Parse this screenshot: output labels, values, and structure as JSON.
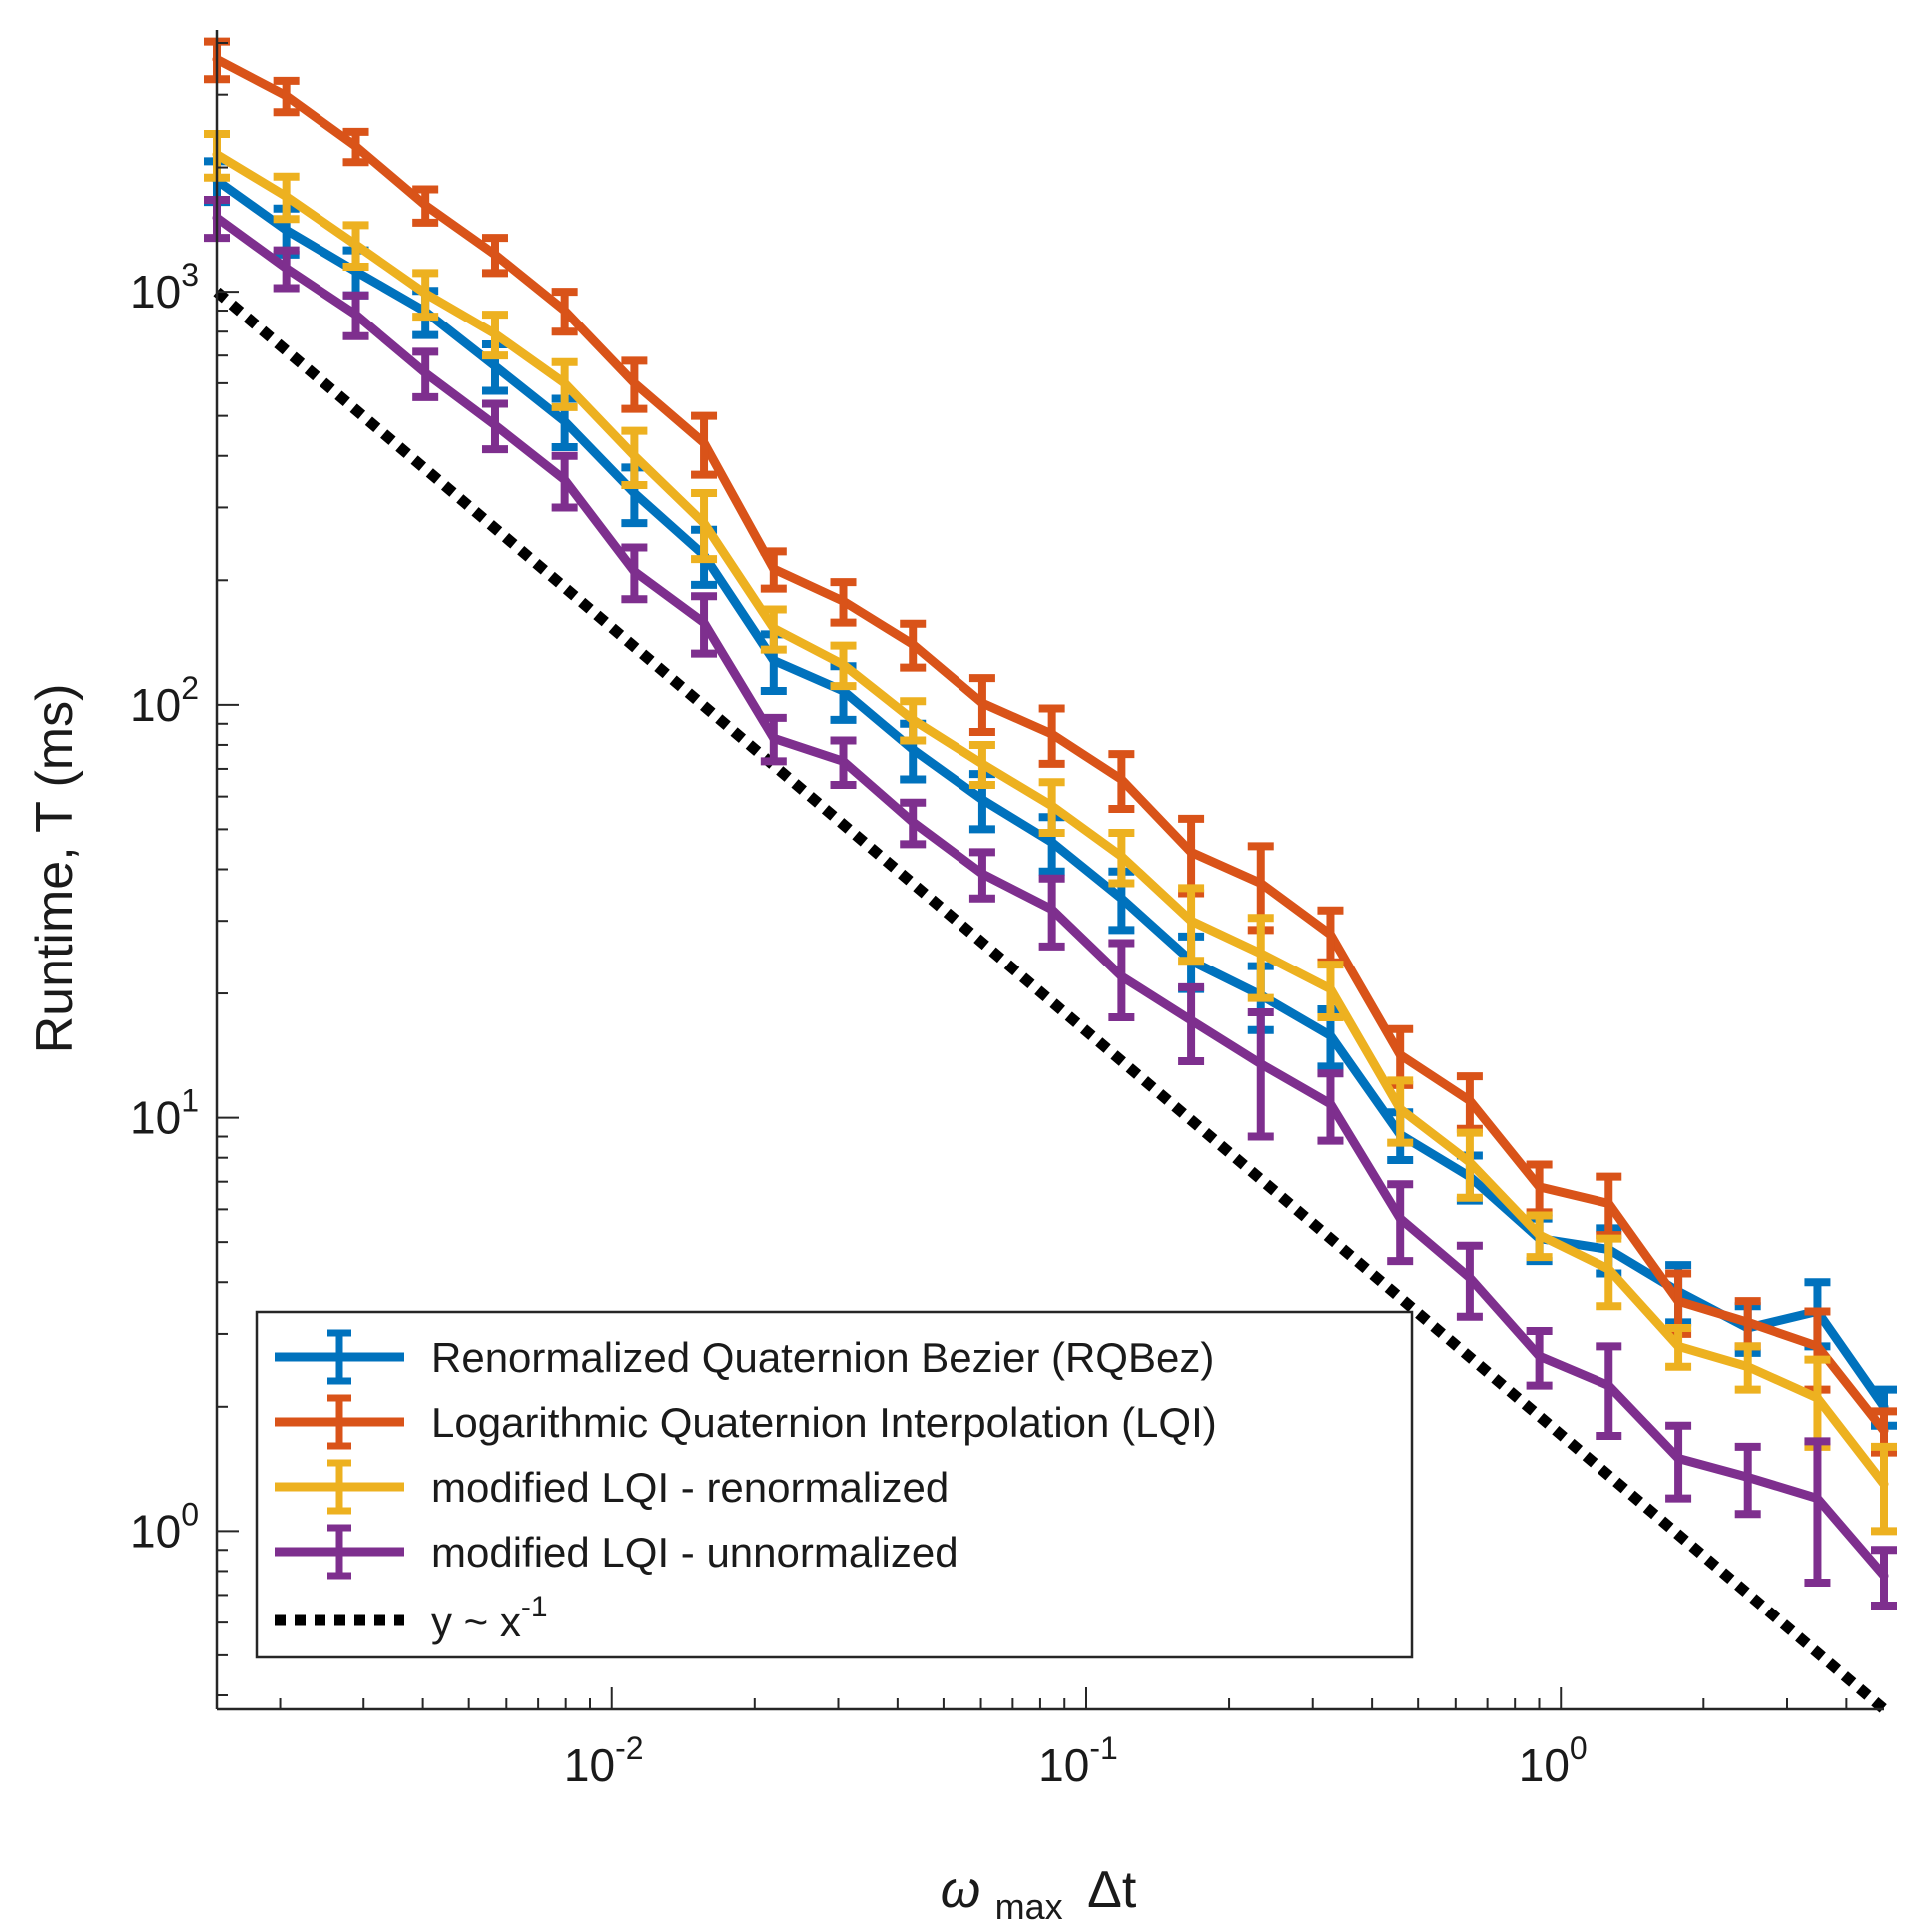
{
  "chart_data": {
    "type": "line",
    "scale": {
      "x": "log",
      "y": "log"
    },
    "xlim": [
      0.00147,
      4.8
    ],
    "ylim": [
      0.37,
      4300
    ],
    "xlabel": {
      "symbol": "ω",
      "subscript": "max",
      "suffix": "Δt"
    },
    "ylabel": "Runtime, T (ms)",
    "x_ticks": [
      {
        "value": 0.01,
        "base": "10",
        "exp": "-2"
      },
      {
        "value": 0.1,
        "base": "10",
        "exp": "-1"
      },
      {
        "value": 1,
        "base": "10",
        "exp": "0"
      }
    ],
    "y_ticks": [
      {
        "value": 1,
        "base": "10",
        "exp": "0"
      },
      {
        "value": 10,
        "base": "10",
        "exp": "1"
      },
      {
        "value": 100,
        "base": "10",
        "exp": "2"
      },
      {
        "value": 1000,
        "base": "10",
        "exp": "3"
      }
    ],
    "x": [
      0.00147,
      0.00206,
      0.00289,
      0.00405,
      0.00568,
      0.00796,
      0.01116,
      0.01564,
      0.02193,
      0.03074,
      0.04309,
      0.0604,
      0.08467,
      0.1187,
      0.1664,
      0.2332,
      0.3269,
      0.4583,
      0.6424,
      0.9005,
      1.262,
      1.77,
      2.48,
      3.477,
      4.8
    ],
    "series": [
      {
        "name": "Renormalized Quaternion Bezier (RQBez)",
        "color": "#0072BD",
        "values": [
          1860,
          1410,
          1120,
          895,
          660,
          485,
          325,
          230,
          128,
          108,
          78,
          59,
          46.5,
          34,
          24,
          19.8,
          15.8,
          9.1,
          7.2,
          5.1,
          4.8,
          3.8,
          3.1,
          3.4,
          2.0
        ],
        "err": [
          210,
          180,
          140,
          110,
          85,
          65,
          50,
          35,
          20,
          16,
          12,
          9,
          7,
          5.5,
          3.5,
          3.5,
          2.5,
          1.2,
          0.9,
          0.6,
          0.6,
          0.6,
          0.4,
          0.6,
          0.2
        ]
      },
      {
        "name": "Logarithmic Quaternion Interpolation (LQI)",
        "color": "#D95319",
        "values": [
          3650,
          2980,
          2250,
          1620,
          1230,
          900,
          600,
          430,
          213,
          178,
          140,
          101,
          85,
          66,
          44,
          37,
          27.8,
          14.2,
          11.0,
          6.8,
          6.2,
          3.6,
          3.2,
          2.8,
          1.75
        ],
        "err": [
          380,
          260,
          190,
          150,
          120,
          100,
          80,
          70,
          22,
          20,
          17,
          15,
          13,
          10,
          9,
          8.5,
          4,
          2.2,
          1.6,
          0.9,
          1.0,
          0.6,
          0.4,
          0.6,
          0.2
        ]
      },
      {
        "name": "modified LQI - renormalized",
        "color": "#EDB120",
        "values": [
          2150,
          1700,
          1300,
          990,
          790,
          600,
          400,
          275,
          153,
          125,
          92,
          72,
          57,
          43,
          30,
          25,
          20.5,
          10.5,
          7.8,
          5.2,
          4.3,
          2.8,
          2.5,
          2.1,
          1.3
        ],
        "err": [
          260,
          200,
          150,
          120,
          90,
          75,
          60,
          50,
          17,
          14,
          10,
          8,
          8,
          6,
          6,
          5.5,
          3,
          1.8,
          1.4,
          0.6,
          0.8,
          0.3,
          0.3,
          0.5,
          0.3
        ]
      },
      {
        "name": "modified LQI - unnormalized",
        "color": "#7E2F8E",
        "values": [
          1510,
          1140,
          880,
          635,
          475,
          350,
          210,
          158,
          83,
          73,
          52,
          39,
          32,
          22,
          17.2,
          13.5,
          10.8,
          5.7,
          4.1,
          2.65,
          2.25,
          1.5,
          1.35,
          1.2,
          0.78
        ],
        "err": [
          160,
          120,
          100,
          80,
          60,
          50,
          30,
          25,
          10,
          9,
          6,
          5,
          6,
          4.5,
          3.5,
          4.5,
          2,
          1.2,
          0.8,
          0.4,
          0.55,
          0.3,
          0.25,
          0.45,
          0.12
        ]
      },
      {
        "name": "y ~ x",
        "label_exp": "-1",
        "color": "#000000",
        "style": "dotted",
        "points": [
          {
            "x": 0.00147,
            "y": 1000
          },
          {
            "x": 4.8,
            "y": 0.37
          }
        ]
      }
    ],
    "legend_location": "bottom-left"
  }
}
